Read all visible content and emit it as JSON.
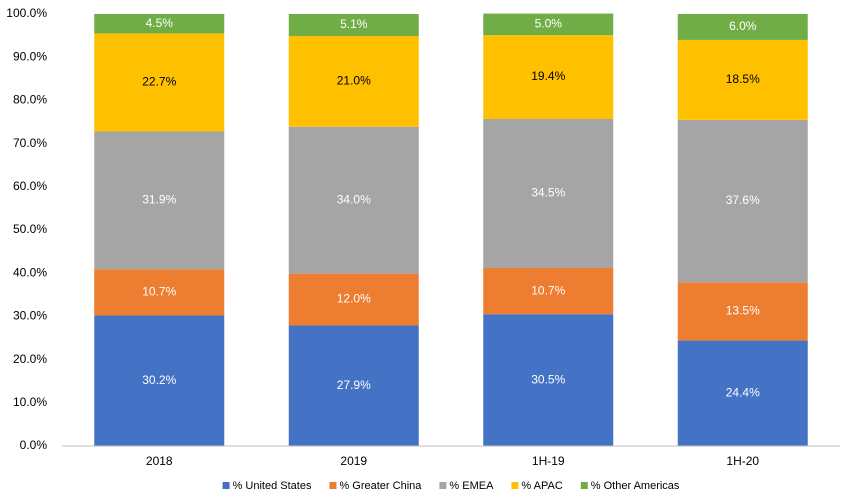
{
  "chart_data": {
    "type": "stacked-bar",
    "categories": [
      "2018",
      "2019",
      "1H-19",
      "1H-20"
    ],
    "series": [
      {
        "name": "% United States",
        "color": "#4472c4",
        "label_color": "#ffffff",
        "values": [
          30.2,
          27.9,
          30.5,
          24.4
        ],
        "value_labels": [
          "30.2%",
          "27.9%",
          "30.5%",
          "24.4%"
        ]
      },
      {
        "name": "% Greater China",
        "color": "#ed7d31",
        "label_color": "#ffffff",
        "values": [
          10.7,
          12.0,
          10.7,
          13.5
        ],
        "value_labels": [
          "10.7%",
          "12.0%",
          "10.7%",
          "13.5%"
        ]
      },
      {
        "name": "% EMEA",
        "color": "#a5a5a5",
        "label_color": "#ffffff",
        "values": [
          31.9,
          34.0,
          34.5,
          37.6
        ],
        "value_labels": [
          "31.9%",
          "34.0%",
          "34.5%",
          "37.6%"
        ]
      },
      {
        "name": "% APAC",
        "color": "#ffc000",
        "label_color": "#000000",
        "values": [
          22.7,
          21.0,
          19.4,
          18.5
        ],
        "value_labels": [
          "22.7%",
          "21.0%",
          "19.4%",
          "18.5%"
        ]
      },
      {
        "name": "% Other Americas",
        "color": "#70ad47",
        "label_color": "#ffffff",
        "values": [
          4.5,
          5.1,
          5.0,
          6.0
        ],
        "value_labels": [
          "4.5%",
          "5.1%",
          "5.0%",
          "6.0%"
        ]
      }
    ],
    "ylim": [
      0,
      100
    ],
    "yticks": [
      {
        "value": 0,
        "label": "0.0%"
      },
      {
        "value": 10,
        "label": "10.0%"
      },
      {
        "value": 20,
        "label": "20.0%"
      },
      {
        "value": 30,
        "label": "30.0%"
      },
      {
        "value": 40,
        "label": "40.0%"
      },
      {
        "value": 50,
        "label": "50.0%"
      },
      {
        "value": 60,
        "label": "60.0%"
      },
      {
        "value": 70,
        "label": "70.0%"
      },
      {
        "value": 80,
        "label": "80.0%"
      },
      {
        "value": 90,
        "label": "90.0%"
      },
      {
        "value": 100,
        "label": "100.0%"
      }
    ],
    "grid": false,
    "legend": "bottom"
  }
}
